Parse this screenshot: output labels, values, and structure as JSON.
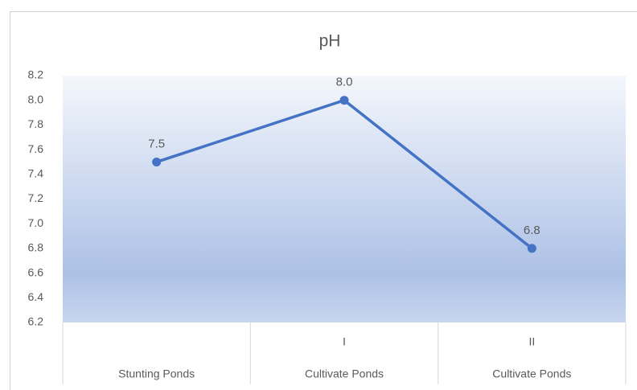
{
  "chart_data": {
    "type": "line",
    "title": "pH",
    "categories": [
      null,
      "I",
      "II"
    ],
    "category_groups": [
      "Stunting Ponds",
      "Cultivate Ponds",
      "Cultivate Ponds"
    ],
    "values": [
      7.5,
      8,
      6.8
    ],
    "value_labels": [
      "7.5",
      "8.0",
      "6.8"
    ],
    "color": "#4472c4",
    "ylim": [
      6.2,
      8.2
    ],
    "yticks": [
      6.2,
      6.4,
      6.6,
      6.8,
      {
        "value": 7,
        "label": "7.0"
      },
      7.2,
      7.4,
      7.6,
      7.8,
      {
        "value": 8,
        "label": "8.0"
      },
      8.2
    ]
  }
}
